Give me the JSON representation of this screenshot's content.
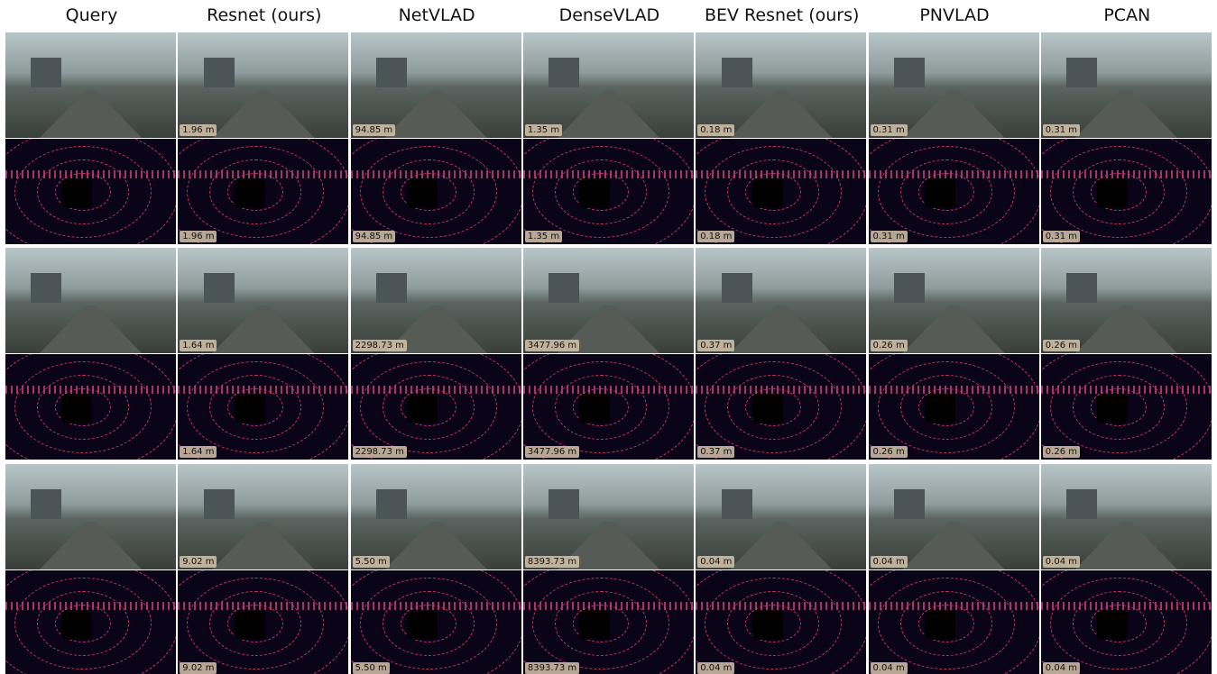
{
  "headers": [
    "Query",
    "Resnet (ours)",
    "NetVLAD",
    "DenseVLAD",
    "BEV Resnet (ours)",
    "PNVLAD",
    "PCAN"
  ],
  "groups": [
    {
      "errors": [
        "1.96 m",
        "94.85 m",
        "1.35 m",
        "0.18 m",
        "0.31 m",
        "0.31 m"
      ]
    },
    {
      "errors": [
        "1.64 m",
        "2298.73 m",
        "3477.96 m",
        "0.37 m",
        "0.26 m",
        "0.26 m"
      ]
    },
    {
      "errors": [
        "9.02 m",
        "5.50 m",
        "8393.73 m",
        "0.04 m",
        "0.04 m",
        "0.04 m"
      ]
    }
  ]
}
